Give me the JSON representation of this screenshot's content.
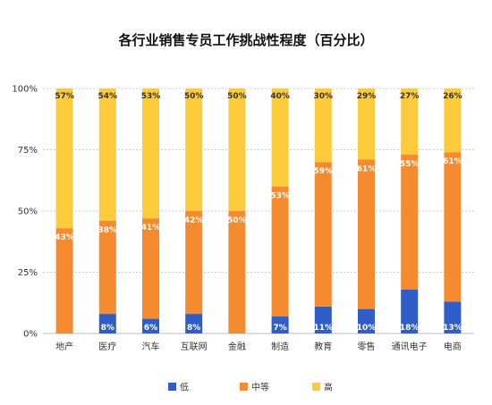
{
  "chart_data": {
    "type": "bar",
    "stacked": true,
    "title": "各行业销售专员工作挑战性程度（百分比）",
    "categories": [
      "地产",
      "医疗",
      "汽车",
      "互联网",
      "金融",
      "制造",
      "教育",
      "零售",
      "通讯电子",
      "电商"
    ],
    "series": [
      {
        "name": "低",
        "color": "#2f5ec8",
        "values": [
          0,
          8,
          6,
          8,
          0,
          7,
          11,
          10,
          18,
          13
        ],
        "labels": [
          "",
          "8%",
          "6%",
          "8%",
          "",
          "7%",
          "11%",
          "10%",
          "18%",
          "13%"
        ]
      },
      {
        "name": "中等",
        "color": "#f58a2f",
        "values": [
          43,
          38,
          41,
          42,
          50,
          53,
          59,
          61,
          55,
          61
        ],
        "labels": [
          "43%",
          "38%",
          "41%",
          "42%",
          "50%",
          "53%",
          "59%",
          "61%",
          "55%",
          "61%"
        ]
      },
      {
        "name": "高",
        "color": "#fccb3b",
        "values": [
          57,
          54,
          53,
          50,
          50,
          40,
          30,
          29,
          27,
          26
        ],
        "labels": [
          "57%",
          "54%",
          "53%",
          "50%",
          "50%",
          "40%",
          "30%",
          "29%",
          "27%",
          "26%"
        ]
      }
    ],
    "yticks": [
      "0%",
      "25%",
      "50%",
      "75%",
      "100%"
    ],
    "ylim": [
      0,
      100
    ],
    "grid": true,
    "legend_position": "bottom"
  }
}
